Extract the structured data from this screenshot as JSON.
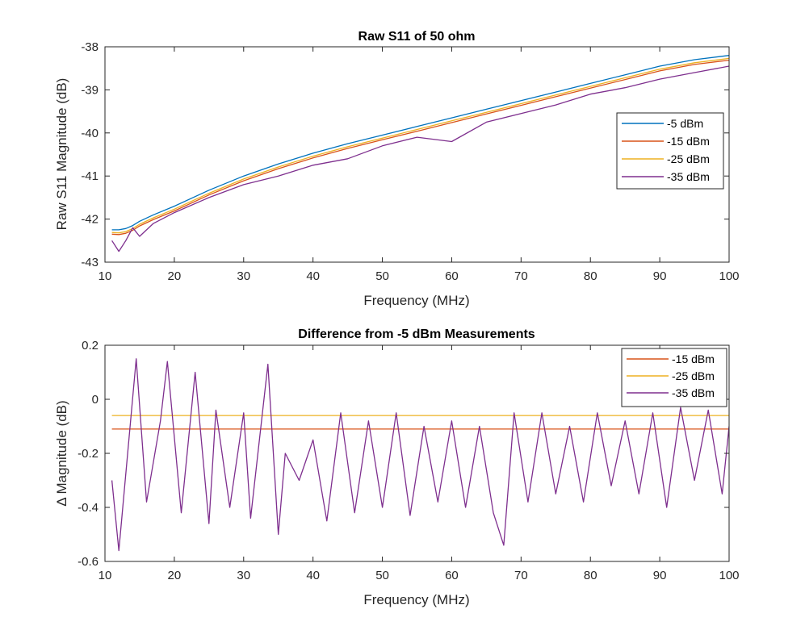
{
  "chart_data": [
    {
      "type": "line",
      "title": "Raw S11 of 50 ohm",
      "xlabel": "Frequency (MHz)",
      "ylabel": "Raw S11 Magnitude (dB)",
      "xlim": [
        10,
        100
      ],
      "ylim": [
        -43,
        -38
      ],
      "xticks": [
        10,
        20,
        30,
        40,
        50,
        60,
        70,
        80,
        90,
        100
      ],
      "yticks": [
        -43,
        -42,
        -41,
        -40,
        -39,
        -38
      ],
      "legend_position": "right",
      "series": [
        {
          "name": "-5 dBm",
          "color": "#0072BD",
          "x": [
            11,
            12,
            13,
            14,
            15,
            17,
            20,
            25,
            30,
            35,
            40,
            45,
            50,
            55,
            60,
            65,
            70,
            75,
            80,
            85,
            90,
            95,
            100
          ],
          "y": [
            -42.25,
            -42.25,
            -42.22,
            -42.15,
            -42.05,
            -41.9,
            -41.7,
            -41.33,
            -41.0,
            -40.72,
            -40.47,
            -40.25,
            -40.05,
            -39.85,
            -39.65,
            -39.45,
            -39.25,
            -39.05,
            -38.85,
            -38.65,
            -38.45,
            -38.3,
            -38.2
          ]
        },
        {
          "name": "-15 dBm",
          "color": "#D95319",
          "x": [
            11,
            12,
            13,
            14,
            15,
            17,
            20,
            25,
            30,
            35,
            40,
            45,
            50,
            55,
            60,
            65,
            70,
            75,
            80,
            85,
            90,
            95,
            100
          ],
          "y": [
            -42.35,
            -42.36,
            -42.33,
            -42.26,
            -42.16,
            -42.01,
            -41.81,
            -41.44,
            -41.11,
            -40.83,
            -40.58,
            -40.36,
            -40.16,
            -39.96,
            -39.76,
            -39.56,
            -39.36,
            -39.16,
            -38.96,
            -38.76,
            -38.56,
            -38.41,
            -38.31
          ]
        },
        {
          "name": "-25 dBm",
          "color": "#EDB120",
          "x": [
            11,
            12,
            13,
            14,
            15,
            17,
            20,
            25,
            30,
            35,
            40,
            45,
            50,
            55,
            60,
            65,
            70,
            75,
            80,
            85,
            90,
            95,
            100
          ],
          "y": [
            -42.31,
            -42.32,
            -42.29,
            -42.22,
            -42.12,
            -41.97,
            -41.77,
            -41.4,
            -41.07,
            -40.79,
            -40.54,
            -40.32,
            -40.12,
            -39.92,
            -39.72,
            -39.52,
            -39.32,
            -39.12,
            -38.92,
            -38.72,
            -38.52,
            -38.37,
            -38.27
          ]
        },
        {
          "name": "-35 dBm",
          "color": "#7E2F8E",
          "x": [
            11,
            12,
            13,
            14,
            15,
            17,
            20,
            25,
            30,
            35,
            40,
            45,
            50,
            55,
            60,
            65,
            70,
            75,
            80,
            85,
            90,
            95,
            100
          ],
          "y": [
            -42.5,
            -42.75,
            -42.5,
            -42.2,
            -42.4,
            -42.1,
            -41.85,
            -41.5,
            -41.2,
            -41.0,
            -40.75,
            -40.6,
            -40.3,
            -40.1,
            -40.2,
            -39.75,
            -39.55,
            -39.35,
            -39.1,
            -38.95,
            -38.75,
            -38.6,
            -38.45
          ]
        }
      ]
    },
    {
      "type": "line",
      "title": "Difference from -5 dBm Measurements",
      "xlabel": "Frequency (MHz)",
      "ylabel": "Δ Magnitude (dB)",
      "xlim": [
        10,
        100
      ],
      "ylim": [
        -0.6,
        0.2
      ],
      "xticks": [
        10,
        20,
        30,
        40,
        50,
        60,
        70,
        80,
        90,
        100
      ],
      "yticks": [
        -0.6,
        -0.4,
        -0.2,
        0,
        0.2
      ],
      "legend_position": "top-right",
      "series": [
        {
          "name": "-15 dBm",
          "color": "#D95319",
          "x": [
            11,
            15,
            20,
            25,
            30,
            35,
            40,
            45,
            50,
            55,
            60,
            65,
            70,
            75,
            80,
            85,
            90,
            95,
            100
          ],
          "y": [
            -0.11,
            -0.11,
            -0.11,
            -0.11,
            -0.11,
            -0.11,
            -0.11,
            -0.11,
            -0.11,
            -0.11,
            -0.11,
            -0.11,
            -0.11,
            -0.11,
            -0.11,
            -0.11,
            -0.11,
            -0.11,
            -0.11
          ]
        },
        {
          "name": "-25 dBm",
          "color": "#EDB120",
          "x": [
            11,
            15,
            20,
            25,
            30,
            35,
            40,
            45,
            50,
            55,
            60,
            65,
            70,
            75,
            80,
            85,
            90,
            95,
            100
          ],
          "y": [
            -0.06,
            -0.06,
            -0.06,
            -0.06,
            -0.06,
            -0.06,
            -0.06,
            -0.06,
            -0.06,
            -0.06,
            -0.06,
            -0.06,
            -0.06,
            -0.06,
            -0.06,
            -0.06,
            -0.06,
            -0.06,
            -0.06
          ]
        },
        {
          "name": "-35 dBm",
          "color": "#7E2F8E",
          "x": [
            11,
            12,
            14.5,
            16,
            18,
            19,
            21,
            23,
            25,
            26,
            28,
            30,
            31,
            33.5,
            35,
            36,
            38,
            40,
            42,
            44,
            46,
            48,
            50,
            52,
            54,
            56,
            58,
            60,
            62,
            64,
            66,
            67.5,
            69,
            71,
            73,
            75,
            77,
            79,
            81,
            83,
            85,
            87,
            89,
            91,
            93,
            95,
            97,
            99,
            100
          ],
          "y": [
            -0.3,
            -0.56,
            0.15,
            -0.38,
            -0.08,
            0.14,
            -0.42,
            0.1,
            -0.46,
            -0.04,
            -0.4,
            -0.05,
            -0.44,
            0.13,
            -0.5,
            -0.2,
            -0.3,
            -0.15,
            -0.45,
            -0.05,
            -0.42,
            -0.08,
            -0.4,
            -0.05,
            -0.43,
            -0.1,
            -0.38,
            -0.08,
            -0.4,
            -0.1,
            -0.42,
            -0.54,
            -0.05,
            -0.38,
            -0.05,
            -0.35,
            -0.1,
            -0.38,
            -0.05,
            -0.32,
            -0.08,
            -0.35,
            -0.05,
            -0.4,
            -0.03,
            -0.3,
            -0.04,
            -0.35,
            -0.1
          ]
        }
      ]
    }
  ]
}
